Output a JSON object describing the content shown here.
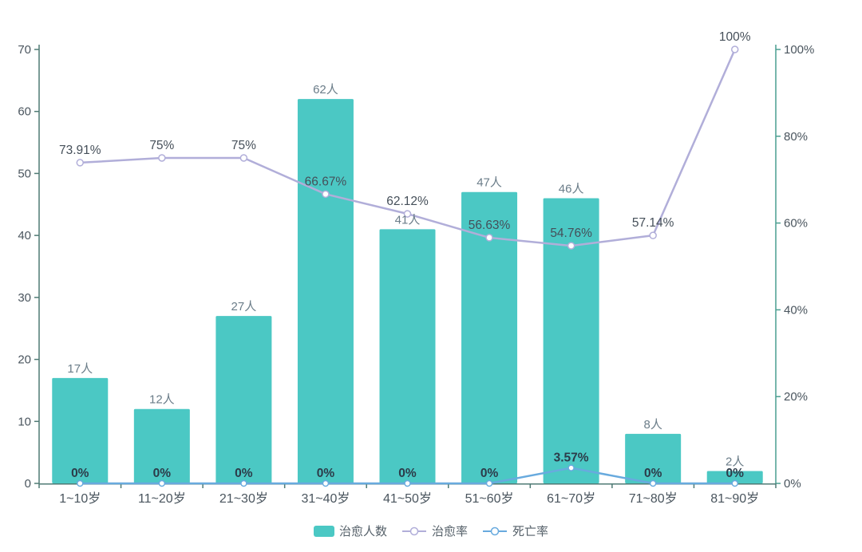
{
  "chart_data": {
    "type": "bar",
    "subtype": "combo-bar-line-dual-axis",
    "title": "",
    "background": "#ffffff",
    "grid": false,
    "legend_position": "bottom",
    "categories": [
      "1~10岁",
      "11~20岁",
      "21~30岁",
      "31~40岁",
      "41~50岁",
      "51~60岁",
      "61~70岁",
      "71~80岁",
      "81~90岁"
    ],
    "series": [
      {
        "name": "治愈人数",
        "type": "bar",
        "axis": "left",
        "color": "#4bc8c4",
        "values": [
          17,
          12,
          27,
          62,
          41,
          47,
          46,
          8,
          2
        ],
        "labels": [
          "17人",
          "12人",
          "27人",
          "62人",
          "41人",
          "47人",
          "46人",
          "8人",
          "2人"
        ]
      },
      {
        "name": "治愈率",
        "type": "line",
        "axis": "right",
        "color": "#b1aed9",
        "values": [
          73.91,
          75,
          75,
          66.67,
          62.12,
          56.63,
          54.76,
          57.14,
          100
        ],
        "labels": [
          "73.91%",
          "75%",
          "75%",
          "66.67%",
          "62.12%",
          "56.63%",
          "54.76%",
          "57.14%",
          "100%"
        ]
      },
      {
        "name": "死亡率",
        "type": "line",
        "axis": "right",
        "color": "#68aade",
        "values": [
          0,
          0,
          0,
          0,
          0,
          0,
          3.57,
          0,
          0
        ],
        "labels": [
          "0%",
          "0%",
          "0%",
          "0%",
          "0%",
          "0%",
          "3.57%",
          "0%",
          "0%"
        ]
      }
    ],
    "left_axis": {
      "min": 0,
      "max": 70,
      "ticks": [
        "0",
        "10",
        "20",
        "30",
        "40",
        "50",
        "60",
        "70"
      ],
      "line_color": "#4f7a74",
      "label_color": "#4a555e"
    },
    "right_axis": {
      "min": 0,
      "max": 100,
      "ticks": [
        "0%",
        "20%",
        "40%",
        "60%",
        "80%",
        "100%"
      ],
      "line_color": "#4a9e90",
      "label_color": "#4a555e"
    },
    "x_axis": {
      "line_color": "#4f7a74",
      "label_color": "#4a555e"
    },
    "label_colors": {
      "bar_value": "#6b7d89",
      "cure_rate": "#454f59",
      "death_rate": "#2c3b49"
    }
  }
}
